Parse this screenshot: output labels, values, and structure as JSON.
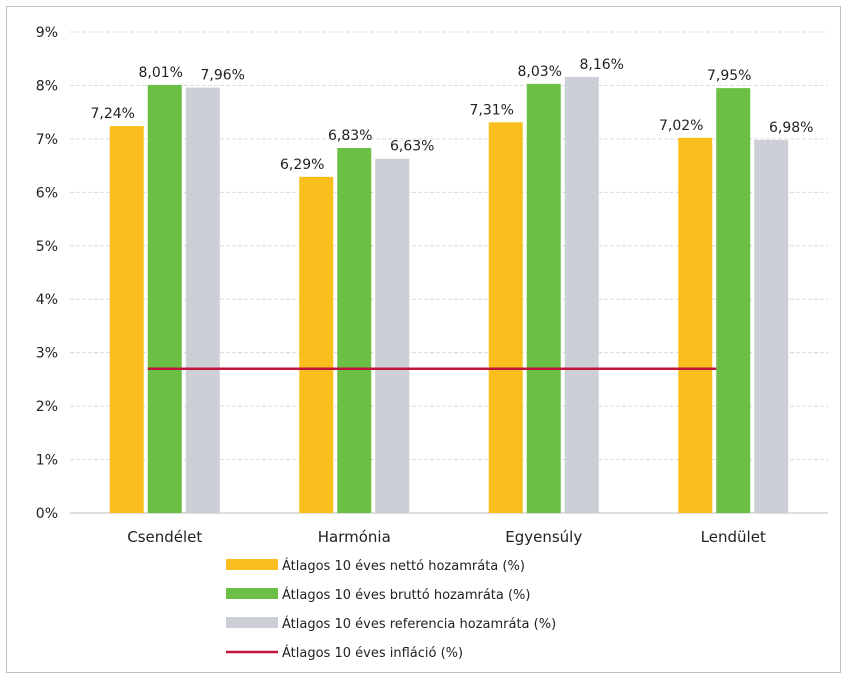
{
  "chart_data": {
    "type": "bar",
    "categories": [
      "Csendélet",
      "Harmónia",
      "Egyensúly",
      "Lendület"
    ],
    "series": [
      {
        "name": "Átlagos 10 éves nettó hozamráta (%)",
        "color": "#fbbf1d",
        "values": [
          7.24,
          6.29,
          7.31,
          7.02
        ],
        "labels": [
          "7,24%",
          "6,29%",
          "7,31%",
          "7,02%"
        ]
      },
      {
        "name": "Átlagos 10 éves bruttó hozamráta (%)",
        "color": "#6cbf45",
        "values": [
          8.01,
          6.83,
          8.03,
          7.95
        ],
        "labels": [
          "8,01%",
          "6,83%",
          "8,03%",
          "7,95%"
        ]
      },
      {
        "name": "Átlagos 10 éves referencia hozamráta (%)",
        "color": "#ccd0d6",
        "values": [
          7.96,
          6.63,
          8.16,
          6.98
        ],
        "labels": [
          "7,96%",
          "6,63%",
          "8,16%",
          "6,98%"
        ]
      }
    ],
    "line_series": {
      "name": "Átlagos 10 éves infláció (%)",
      "color": "#c0143c",
      "value": 2.7
    },
    "yticks": [
      "0%",
      "1%",
      "2%",
      "3%",
      "4%",
      "5%",
      "6%",
      "7%",
      "8%",
      "9%"
    ],
    "ylim": [
      0,
      9
    ],
    "grid": true,
    "legend_position": "bottom",
    "title": "",
    "xlabel": "",
    "ylabel": ""
  }
}
